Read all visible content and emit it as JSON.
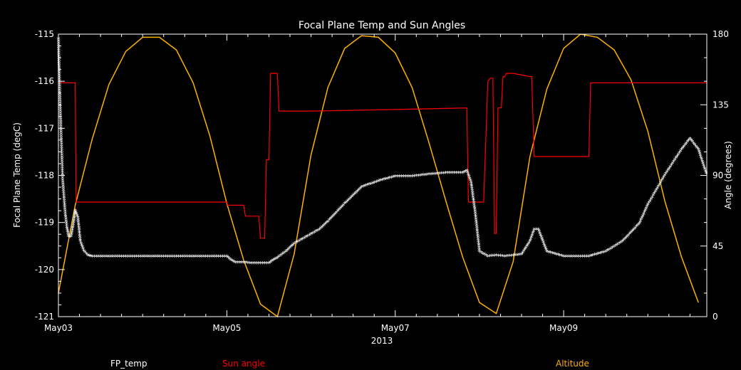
{
  "chart_data": {
    "type": "line",
    "title": "Focal Plane Temp and Sun Angles",
    "xlabel": "2013",
    "ylabel_left": "Focal Plane Temp (degC)",
    "ylabel_right": "Angle (degrees)",
    "x_ticks": [
      "May03",
      "May05",
      "May07",
      "May09"
    ],
    "x_range_days": [
      3.0,
      10.7
    ],
    "ylim_left": [
      -121,
      -115
    ],
    "ylim_right": [
      0,
      180
    ],
    "yticks_left": [
      "-121",
      "-120",
      "-119",
      "-118",
      "-117",
      "-116",
      "-115"
    ],
    "yticks_right": [
      "0",
      "45",
      "90",
      "135",
      "180"
    ],
    "legend": [
      "FP_temp",
      "Sun angle",
      "Altitude"
    ],
    "colors": {
      "fp_temp": "#ffffff",
      "sun_angle": "#ff0000",
      "altitude": "#ffb000"
    },
    "series": [
      {
        "name": "FP_temp",
        "axis": "left",
        "marker": "asterisk",
        "x": [
          3.0,
          3.02,
          3.05,
          3.08,
          3.1,
          3.12,
          3.15,
          3.18,
          3.2,
          3.23,
          3.26,
          3.3,
          3.35,
          3.4,
          3.5,
          3.7,
          4.0,
          4.5,
          5.0,
          5.05,
          5.1,
          5.2,
          5.3,
          5.5,
          5.55,
          5.6,
          5.7,
          5.8,
          5.9,
          6.0,
          6.1,
          6.2,
          6.4,
          6.6,
          6.8,
          7.0,
          7.2,
          7.4,
          7.6,
          7.8,
          7.85,
          7.9,
          7.95,
          8.0,
          8.1,
          8.2,
          8.3,
          8.5,
          8.6,
          8.65,
          8.7,
          8.8,
          9.0,
          9.2,
          9.3,
          9.5,
          9.7,
          9.9,
          10.0,
          10.2,
          10.4,
          10.5,
          10.6,
          10.7
        ],
        "y": [
          -115.1,
          -116.5,
          -118.1,
          -118.8,
          -119.1,
          -119.3,
          -119.3,
          -119.0,
          -118.75,
          -118.9,
          -119.4,
          -119.6,
          -119.7,
          -119.72,
          -119.72,
          -119.72,
          -119.72,
          -119.72,
          -119.72,
          -119.8,
          -119.85,
          -119.85,
          -119.87,
          -119.87,
          -119.8,
          -119.75,
          -119.62,
          -119.45,
          -119.35,
          -119.25,
          -119.15,
          -118.98,
          -118.6,
          -118.25,
          -118.12,
          -118.02,
          -118.02,
          -117.98,
          -117.95,
          -117.95,
          -117.9,
          -118.15,
          -118.8,
          -119.62,
          -119.72,
          -119.7,
          -119.72,
          -119.68,
          -119.4,
          -119.15,
          -119.15,
          -119.62,
          -119.72,
          -119.72,
          -119.72,
          -119.62,
          -119.4,
          -119.02,
          -118.62,
          -118.0,
          -117.45,
          -117.22,
          -117.45,
          -118.0
        ]
      },
      {
        "name": "Sun angle",
        "axis": "right",
        "x": [
          3.0,
          3.2,
          3.21,
          5.0,
          5.01,
          5.2,
          5.22,
          5.38,
          5.4,
          5.45,
          5.47,
          5.5,
          5.52,
          5.6,
          5.62,
          6.0,
          7.0,
          7.85,
          7.87,
          8.0,
          8.05,
          8.1,
          8.13,
          8.16,
          8.18,
          8.2,
          8.22,
          8.26,
          8.28,
          8.3,
          8.32,
          8.4,
          8.6,
          8.62,
          8.65,
          8.67,
          9.3,
          9.32,
          10.0,
          10.7
        ],
        "y": [
          149,
          149,
          73,
          73,
          71,
          71,
          64,
          64,
          50,
          50,
          100,
          100,
          155,
          155,
          131,
          131,
          132,
          133,
          73,
          73,
          73,
          150,
          152,
          152,
          53,
          53,
          133,
          133,
          153,
          153,
          155,
          155,
          153,
          153,
          102,
          102,
          102,
          149,
          149,
          149
        ]
      },
      {
        "name": "Altitude",
        "axis": "right",
        "x": [
          3.0,
          3.2,
          3.4,
          3.6,
          3.8,
          4.0,
          4.2,
          4.4,
          4.6,
          4.8,
          5.0,
          5.2,
          5.4,
          5.6,
          5.8,
          6.0,
          6.2,
          6.4,
          6.6,
          6.8,
          7.0,
          7.2,
          7.4,
          7.6,
          7.8,
          8.0,
          8.2,
          8.4,
          8.6,
          8.8,
          9.0,
          9.2,
          9.4,
          9.6,
          9.8,
          10.0,
          10.2,
          10.4,
          10.6
        ],
        "y": [
          15,
          71,
          113,
          148,
          169,
          178,
          178,
          170,
          149,
          115,
          72,
          36,
          8,
          0,
          40,
          103,
          146,
          171,
          179,
          178,
          168,
          146,
          111,
          74,
          38,
          9,
          2,
          35,
          102,
          145,
          171,
          180,
          178,
          170,
          151,
          118,
          74,
          38,
          9
        ]
      }
    ]
  }
}
